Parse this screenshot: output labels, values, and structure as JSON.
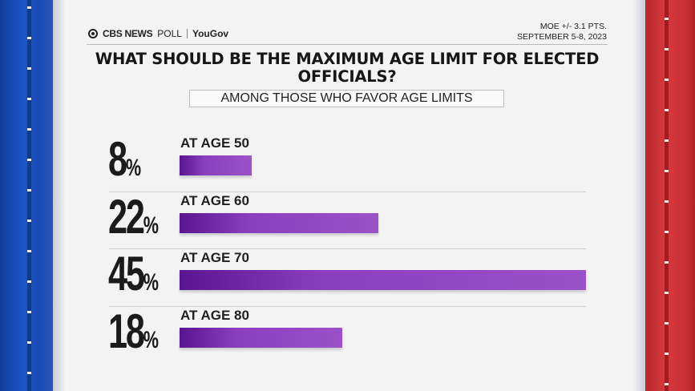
{
  "header": {
    "brand_cbs": "CBS NEWS",
    "brand_poll": "POLL",
    "brand_partner": "YouGov",
    "moe": "MOE +/- 3.1 PTS.",
    "dates": "SEPTEMBER 5-8, 2023"
  },
  "chart_data": {
    "type": "bar",
    "title": "WHAT SHOULD BE THE MAXIMUM AGE LIMIT FOR ELECTED OFFICIALS?",
    "subtitle": "AMONG THOSE WHO FAVOR AGE LIMITS",
    "categories": [
      "AT AGE 50",
      "AT AGE 60",
      "AT AGE 70",
      "AT AGE 80"
    ],
    "values": [
      8,
      22,
      45,
      18
    ],
    "value_labels": [
      "8",
      "22",
      "45",
      "18"
    ],
    "unit": "%",
    "orientation": "horizontal",
    "xlim": [
      0,
      45
    ],
    "colors": {
      "bar": "#8a3fbf",
      "bar_dark": "#5a1590",
      "side_blue": "#1c56c8",
      "side_red": "#d63a3e"
    }
  }
}
